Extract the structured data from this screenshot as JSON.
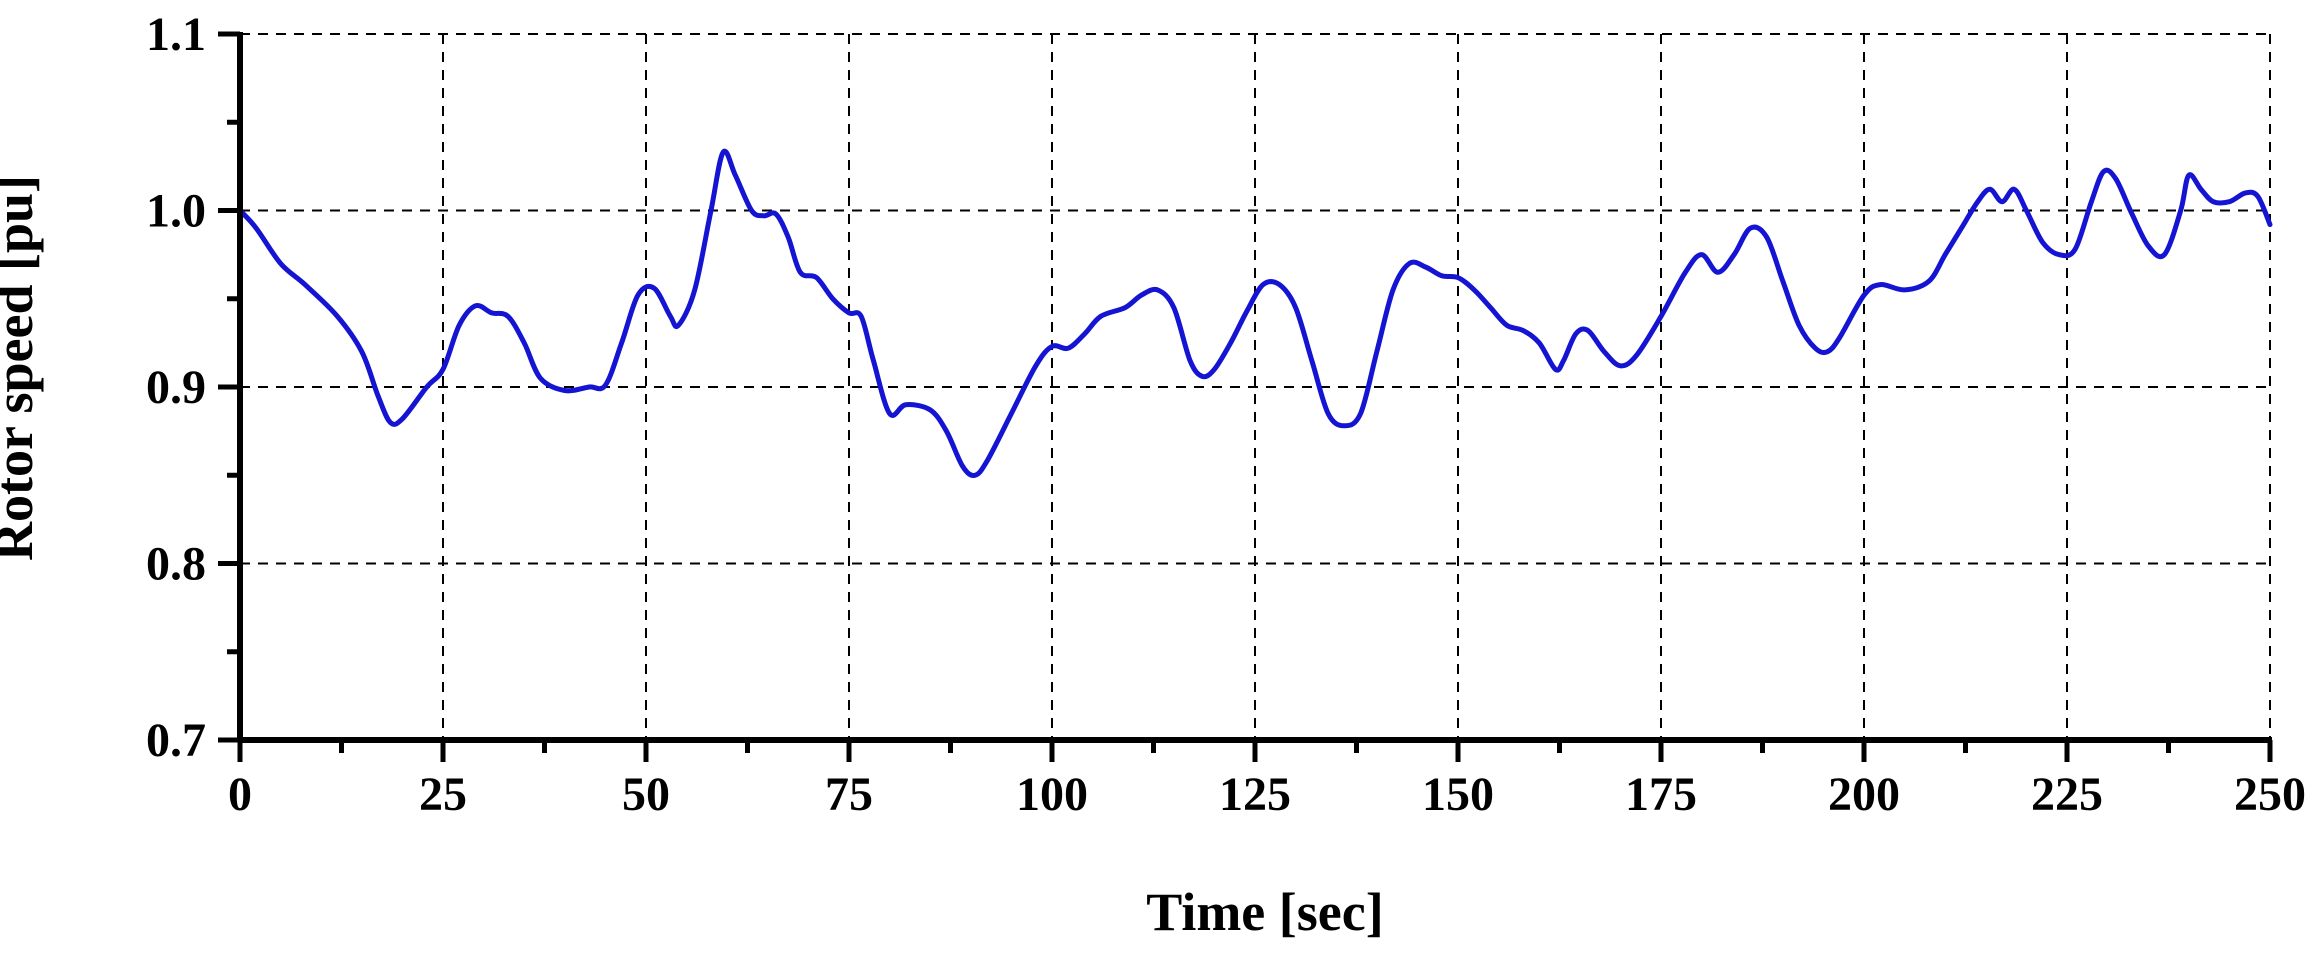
{
  "chart_data": {
    "type": "line",
    "title": "",
    "xlabel": "Time [sec]",
    "ylabel": "Rotor speed [pu]",
    "xlim": [
      0,
      250
    ],
    "ylim": [
      0.7,
      1.1
    ],
    "x_ticks": [
      "0",
      "25",
      "50",
      "75",
      "100",
      "125",
      "150",
      "175",
      "200",
      "225",
      "250"
    ],
    "y_ticks": [
      "0.7",
      "0.8",
      "0.9",
      "1.0",
      "1.1"
    ],
    "grid": true,
    "legend": "none",
    "series": [
      {
        "color": "#1414d2",
        "x": [
          0,
          2,
          5,
          8,
          12,
          15,
          17,
          18.5,
          20,
          23,
          25,
          27,
          29,
          31,
          33,
          35,
          37,
          40,
          43,
          45,
          47,
          49,
          51,
          53,
          54,
          56,
          58,
          59.5,
          61,
          63,
          64.5,
          66,
          67.5,
          69,
          71,
          73,
          75,
          76.5,
          78,
          80,
          82,
          85,
          87,
          89,
          90.5,
          92,
          95,
          98,
          100,
          102,
          104,
          106,
          109,
          111,
          113,
          115,
          117,
          118.5,
          120,
          122,
          124,
          126,
          128,
          130,
          132,
          134,
          136,
          138,
          140,
          142,
          144,
          146,
          148,
          150,
          152,
          154,
          156,
          158,
          160,
          162,
          163,
          164.5,
          166,
          168,
          170,
          172,
          175,
          178,
          180,
          182,
          184,
          186,
          188,
          190,
          192,
          194,
          195.5,
          197,
          200,
          202,
          205,
          208,
          210,
          212,
          214,
          215.5,
          217,
          218.5,
          220,
          222,
          224,
          226,
          228,
          229.5,
          231,
          233,
          235,
          237,
          239,
          240,
          241.5,
          243,
          245,
          247,
          248.5,
          250
        ],
        "y": [
          1.0,
          0.99,
          0.97,
          0.958,
          0.94,
          0.92,
          0.895,
          0.88,
          0.882,
          0.9,
          0.91,
          0.935,
          0.946,
          0.942,
          0.94,
          0.925,
          0.905,
          0.898,
          0.9,
          0.901,
          0.925,
          0.952,
          0.956,
          0.94,
          0.935,
          0.955,
          1.0,
          1.033,
          1.02,
          1.0,
          0.997,
          0.998,
          0.985,
          0.965,
          0.962,
          0.95,
          0.942,
          0.94,
          0.915,
          0.885,
          0.89,
          0.887,
          0.875,
          0.855,
          0.85,
          0.858,
          0.885,
          0.912,
          0.923,
          0.922,
          0.93,
          0.94,
          0.945,
          0.952,
          0.955,
          0.945,
          0.915,
          0.906,
          0.91,
          0.925,
          0.943,
          0.958,
          0.958,
          0.945,
          0.915,
          0.885,
          0.878,
          0.885,
          0.92,
          0.955,
          0.97,
          0.968,
          0.963,
          0.962,
          0.955,
          0.945,
          0.935,
          0.932,
          0.925,
          0.91,
          0.915,
          0.93,
          0.932,
          0.92,
          0.912,
          0.918,
          0.94,
          0.965,
          0.975,
          0.965,
          0.975,
          0.99,
          0.985,
          0.96,
          0.935,
          0.922,
          0.92,
          0.928,
          0.952,
          0.958,
          0.955,
          0.96,
          0.975,
          0.99,
          1.005,
          1.012,
          1.005,
          1.012,
          1.0,
          0.982,
          0.975,
          0.978,
          1.005,
          1.022,
          1.018,
          0.998,
          0.98,
          0.975,
          1.0,
          1.02,
          1.012,
          1.005,
          1.005,
          1.01,
          1.008,
          0.992
        ]
      }
    ]
  }
}
